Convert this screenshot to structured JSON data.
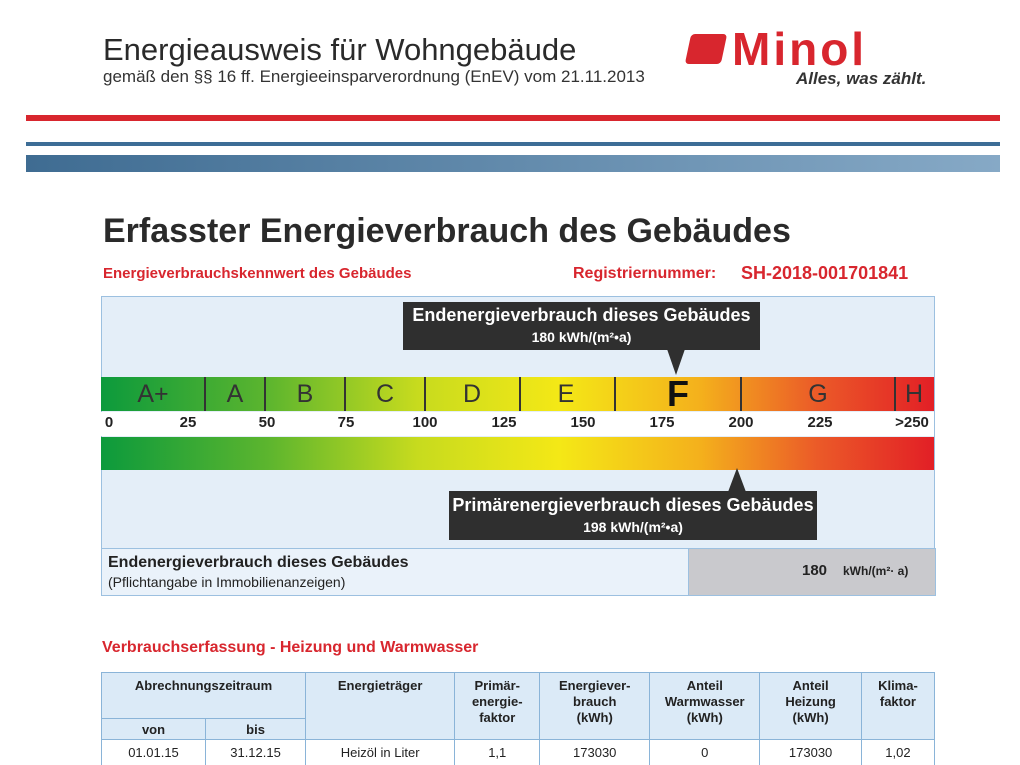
{
  "header": {
    "title": "Energieausweis für Wohngebäude",
    "subtitle": "gemäß den §§ 16 ff. Energieeinsparverordnung (EnEV) vom 21.11.2013",
    "logo": "Minol",
    "slogan": "Alles, was zählt."
  },
  "section": {
    "title": "Erfasster Energieverbrauch des Gebäudes",
    "label": "Energieverbrauchskennwert des Gebäudes",
    "registration_label": "Registriernummer:",
    "registration_number": "SH-2018-001701841"
  },
  "scale": {
    "classes": [
      "A+",
      "A",
      "B",
      "C",
      "D",
      "E",
      "F",
      "G",
      "H"
    ],
    "labels": [
      "0",
      "25",
      "50",
      "75",
      "100",
      "125",
      "150",
      "175",
      "200",
      "225",
      ">250"
    ]
  },
  "callouts": {
    "end_energy": {
      "title": "Endenergieverbrauch dieses Gebäudes",
      "value": "180 kWh/(m²•a)"
    },
    "primary_energy": {
      "title": "Primärenergieverbrauch dieses Gebäudes",
      "value": "198 kWh/(m²•a)"
    }
  },
  "summary": {
    "title": "Endenergieverbrauch dieses Gebäudes",
    "note": "(Pflichtangabe in Immobilienanzeigen)",
    "value": "180",
    "unit": "kWh/(m²· a)"
  },
  "table": {
    "title": "Verbrauchserfassung - Heizung und Warmwasser",
    "period_header": "Abrechnungszeitraum",
    "from_header": "von",
    "to_header": "bis",
    "headers": [
      [
        "Energieträger"
      ],
      [
        "Primär-",
        "energie-",
        "faktor"
      ],
      [
        "Energiever-",
        "brauch",
        "(kWh)"
      ],
      [
        "Anteil",
        "Warmwasser",
        "(kWh)"
      ],
      [
        "Anteil",
        "Heizung",
        "(kWh)"
      ],
      [
        "Klima-",
        "faktor"
      ]
    ],
    "rows": [
      [
        "01.01.15",
        "31.12.15",
        "Heizöl in Liter",
        "1,1",
        "173030",
        "0",
        "173030",
        "1,02"
      ]
    ]
  }
}
